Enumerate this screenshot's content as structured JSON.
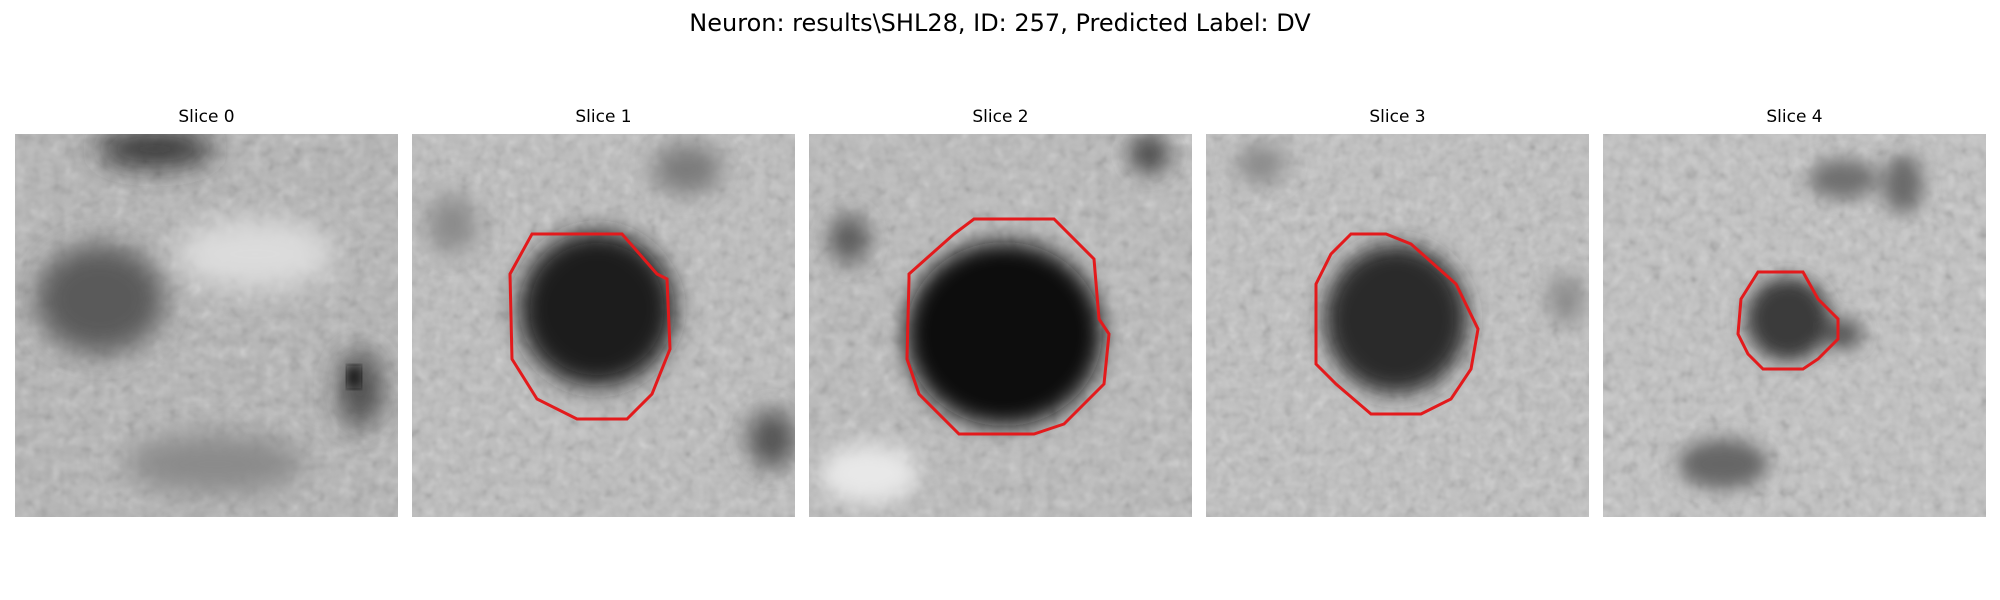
{
  "figure": {
    "title": "Neuron: results\\SHL28, ID: 257, Predicted Label: DV"
  },
  "panels": [
    {
      "title": "Slice 0",
      "contour": false,
      "overlay_color": "#e31a1c"
    },
    {
      "title": "Slice 1",
      "contour": true,
      "overlay_color": "#e31a1c"
    },
    {
      "title": "Slice 2",
      "contour": true,
      "overlay_color": "#e31a1c"
    },
    {
      "title": "Slice 3",
      "contour": true,
      "overlay_color": "#e31a1c"
    },
    {
      "title": "Slice 4",
      "contour": true,
      "overlay_color": "#e31a1c"
    }
  ]
}
